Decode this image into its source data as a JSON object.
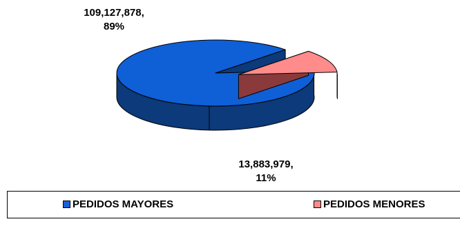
{
  "chart_data": {
    "type": "pie",
    "categories": [
      "PEDIDOS MAYORES",
      "PEDIDOS MENORES"
    ],
    "values": [
      109127878,
      13883979
    ],
    "percentages": [
      89,
      11
    ],
    "title": "",
    "legend_position": "bottom",
    "three_d": true,
    "exploded": "PEDIDOS MENORES",
    "data_labels": [
      {
        "value": "109,127,878,",
        "percent": "89%"
      },
      {
        "value": "13,883,979,",
        "percent": "11%"
      }
    ],
    "colors": {
      "series_a_top": "#0f5fd6",
      "series_a_side": "#0c3a7a",
      "series_b_top": "#ff8b8b",
      "series_b_side": "#8a3a3a"
    }
  },
  "legend": {
    "items": [
      {
        "label": "PEDIDOS MAYORES",
        "color": "#1a5fd8"
      },
      {
        "label": "PEDIDOS MENORES",
        "color": "#ff8b8b"
      }
    ]
  }
}
